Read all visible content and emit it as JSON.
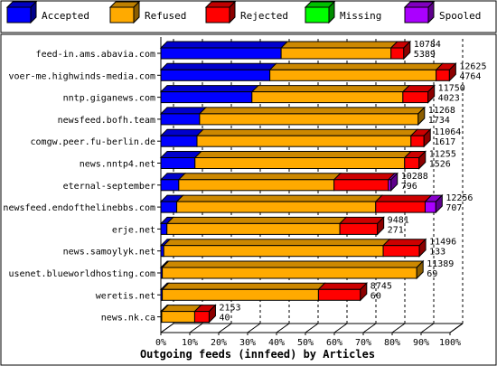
{
  "chart_data": {
    "type": "bar",
    "orientation": "horizontal",
    "stacked": true,
    "title": "Outgoing feeds (innfeed) by Articles",
    "legend_position": "top",
    "xlim": [
      0,
      100
    ],
    "x_ticks": [
      "0%",
      "10%",
      "20%",
      "30%",
      "40%",
      "50%",
      "60%",
      "70%",
      "80%",
      "90%",
      "100%"
    ],
    "series": [
      {
        "name": "Accepted",
        "color": "#0000ff"
      },
      {
        "name": "Refused",
        "color": "#ffaa00"
      },
      {
        "name": "Rejected",
        "color": "#ff0000"
      },
      {
        "name": "Missing",
        "color": "#00ff00"
      },
      {
        "name": "Spooled",
        "color": "#aa00ff"
      }
    ],
    "rows": [
      {
        "label": "feed-in.ams.abavia.com",
        "offered": "10784",
        "accepted": "5389",
        "values": [
          41.6,
          38.0,
          4.4,
          0,
          0
        ]
      },
      {
        "label": "voer-me.highwinds-media.com",
        "offered": "12625",
        "accepted": "4764",
        "values": [
          37.7,
          57.5,
          4.6,
          0,
          0
        ]
      },
      {
        "label": "nntp.giganews.com",
        "offered": "11750",
        "accepted": "4023",
        "values": [
          31.5,
          52.2,
          8.7,
          0,
          0
        ]
      },
      {
        "label": "newsfeed.bofh.team",
        "offered": "11268",
        "accepted": "1734",
        "values": [
          13.4,
          75.6,
          0,
          0,
          0
        ]
      },
      {
        "label": "comgw.peer.fu-berlin.de",
        "offered": "11064",
        "accepted": "1617",
        "values": [
          12.5,
          74.0,
          4.5,
          0,
          0
        ]
      },
      {
        "label": "news.nntp4.net",
        "offered": "11255",
        "accepted": "1526",
        "values": [
          11.8,
          72.5,
          5.0,
          0,
          0
        ]
      },
      {
        "label": "eternal-september",
        "offered": "10288",
        "accepted": "796",
        "values": [
          6.2,
          53.7,
          18.8,
          0,
          0.9
        ]
      },
      {
        "label": "newsfeed.endofthelinebbs.com",
        "offered": "12256",
        "accepted": "707",
        "values": [
          5.5,
          68.8,
          17.1,
          0,
          3.7
        ]
      },
      {
        "label": "erje.net",
        "offered": "9481",
        "accepted": "271",
        "values": [
          2.1,
          59.8,
          13.0,
          0,
          0
        ]
      },
      {
        "label": "news.samoylyk.net",
        "offered": "11496",
        "accepted": "133",
        "values": [
          1.0,
          75.9,
          12.5,
          0,
          0
        ]
      },
      {
        "label": "usenet.blueworldhosting.com",
        "offered": "11389",
        "accepted": "69",
        "values": [
          0.5,
          88.0,
          0,
          0,
          0
        ]
      },
      {
        "label": "weretis.net",
        "offered": "8745",
        "accepted": "60",
        "values": [
          0.5,
          54.0,
          14.5,
          0,
          0
        ]
      },
      {
        "label": "news.nk.ca",
        "offered": "2153",
        "accepted": "40",
        "values": [
          0.3,
          11.4,
          5.0,
          0,
          0
        ]
      }
    ]
  }
}
